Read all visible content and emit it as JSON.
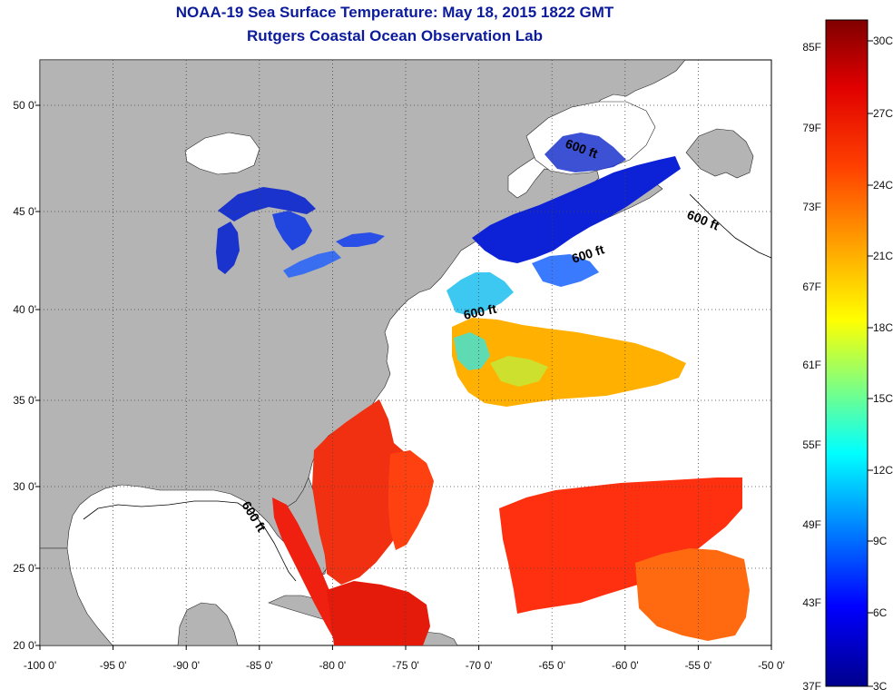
{
  "title": "NOAA-19 Sea Surface Temperature:  May 18, 2015 1822 GMT",
  "subtitle": "Rutgers Coastal Ocean Observation Lab",
  "map": {
    "lon_ticks": [
      "-100 0'",
      "-95 0'",
      "-90 0'",
      "-85 0'",
      "-80 0'",
      "-75 0'",
      "-70 0'",
      "-65 0'",
      "-60 0'",
      "-55 0'",
      "-50 0'"
    ],
    "lat_ticks": [
      "50 0'",
      "45 0'",
      "40 0'",
      "35 0'",
      "30 0'",
      "25 0'",
      "20 0'"
    ],
    "depth_contour_label": "600 ft",
    "colors": {
      "land": "#b4b4b4",
      "cloud_mask": "#ffffff",
      "grid": "#555555"
    }
  },
  "colorbar": {
    "fahrenheit_labels": [
      "85F",
      "79F",
      "73F",
      "67F",
      "61F",
      "55F",
      "49F",
      "43F",
      "37F"
    ],
    "celsius_labels": [
      "30C",
      "27C",
      "24C",
      "21C",
      "18C",
      "15C",
      "12C",
      "9C",
      "6C",
      "3C"
    ],
    "colormap": "jet"
  }
}
